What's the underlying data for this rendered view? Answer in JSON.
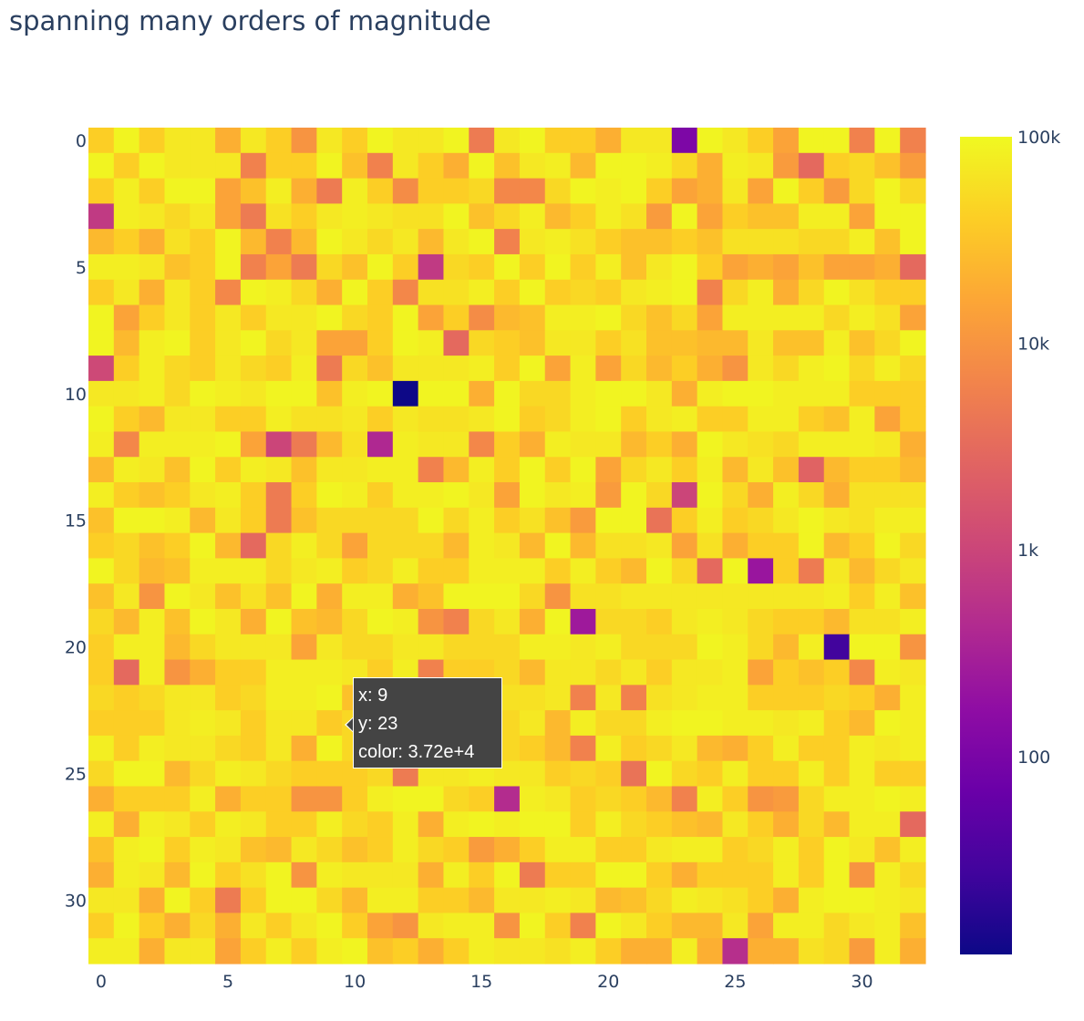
{
  "chart_data": {
    "type": "heatmap",
    "title": "spanning many orders of magnitude",
    "x_ticks": [
      0,
      5,
      10,
      15,
      20,
      25,
      30
    ],
    "y_ticks": [
      0,
      5,
      10,
      15,
      20,
      25,
      30
    ],
    "y_axis_reversed": true,
    "color_scale": "log",
    "colorbar": {
      "tick_values": [
        100000,
        10000,
        1000,
        100
      ],
      "tick_labels": [
        "100k",
        "10k",
        "1k",
        "100"
      ],
      "range": [
        11,
        100000
      ],
      "colors": [
        "#0d0887",
        "#41049d",
        "#6a00a8",
        "#8f0da4",
        "#b12a90",
        "#cc4778",
        "#e16462",
        "#f2844b",
        "#fca636",
        "#fcce25",
        "#f0f921"
      ]
    },
    "z": [
      [
        40000.0,
        90000.0,
        40000.0,
        70000.0,
        70000.0,
        20000.0,
        70000.0,
        40000.0,
        10000.0,
        70000.0,
        40000.0,
        90000.0,
        70000.0,
        70000.0,
        90000.0,
        5000.0,
        70000.0,
        90000.0,
        40000.0,
        40000.0,
        20000.0,
        70000.0,
        70000.0,
        110,
        90000.0,
        70000.0,
        40000.0,
        15000.0,
        90000.0,
        90000.0,
        6000.0,
        90000.0,
        6000.0
      ],
      [
        90000.0,
        40000.0,
        90000.0,
        70000.0,
        70000.0,
        70000.0,
        6000.0,
        40000.0,
        40000.0,
        90000.0,
        30000.0,
        6000.0,
        70000.0,
        40000.0,
        20000.0,
        90000.0,
        30000.0,
        70000.0,
        80000.0,
        25000.0,
        90000.0,
        90000.0,
        80000.0,
        50000.0,
        20000.0,
        80000.0,
        70000.0,
        12000.0,
        3000.0,
        40000.0,
        50000.0,
        30000.0,
        12000.0
      ],
      [
        40000.0,
        80000.0,
        40000.0,
        90000.0,
        90000.0,
        15000.0,
        30000.0,
        80000.0,
        20000.0,
        5000.0,
        80000.0,
        40000.0,
        8000.0,
        40000.0,
        40000.0,
        50000.0,
        7000.0,
        7000.0,
        50000.0,
        90000.0,
        80000.0,
        90000.0,
        40000.0,
        15000.0,
        20000.0,
        70000.0,
        15000.0,
        90000.0,
        40000.0,
        12000.0,
        50000.0,
        90000.0,
        50000.0
      ],
      [
        700,
        80000.0,
        70000.0,
        50000.0,
        70000.0,
        15000.0,
        5000.0,
        60000.0,
        40000.0,
        70000.0,
        80000.0,
        70000.0,
        60000.0,
        60000.0,
        90000.0,
        30000.0,
        50000.0,
        80000.0,
        25000.0,
        40000.0,
        80000.0,
        60000.0,
        12000.0,
        90000.0,
        15000.0,
        40000.0,
        30000.0,
        30000.0,
        80000.0,
        80000.0,
        15000.0,
        90000.0,
        90000.0
      ],
      [
        25000.0,
        40000.0,
        20000.0,
        60000.0,
        40000.0,
        90000.0,
        25000.0,
        6000.0,
        25000.0,
        90000.0,
        70000.0,
        50000.0,
        70000.0,
        25000.0,
        70000.0,
        90000.0,
        6000.0,
        70000.0,
        80000.0,
        60000.0,
        40000.0,
        30000.0,
        30000.0,
        40000.0,
        30000.0,
        60000.0,
        60000.0,
        60000.0,
        50000.0,
        50000.0,
        80000.0,
        30000.0,
        90000.0
      ],
      [
        80000.0,
        80000.0,
        70000.0,
        30000.0,
        40000.0,
        90000.0,
        6000.0,
        15000.0,
        5000.0,
        50000.0,
        30000.0,
        90000.0,
        40000.0,
        700,
        50000.0,
        40000.0,
        90000.0,
        40000.0,
        90000.0,
        40000.0,
        80000.0,
        30000.0,
        70000.0,
        90000.0,
        40000.0,
        15000.0,
        20000.0,
        15000.0,
        30000.0,
        15000.0,
        15000.0,
        20000.0,
        3000.0
      ],
      [
        40000.0,
        70000.0,
        20000.0,
        70000.0,
        40000.0,
        7000.0,
        90000.0,
        80000.0,
        50000.0,
        20000.0,
        90000.0,
        40000.0,
        7000.0,
        60000.0,
        60000.0,
        80000.0,
        40000.0,
        90000.0,
        40000.0,
        50000.0,
        40000.0,
        70000.0,
        80000.0,
        90000.0,
        6000.0,
        50000.0,
        80000.0,
        20000.0,
        50000.0,
        90000.0,
        60000.0,
        40000.0,
        40000.0
      ],
      [
        90000.0,
        15000.0,
        40000.0,
        70000.0,
        40000.0,
        70000.0,
        40000.0,
        70000.0,
        70000.0,
        90000.0,
        50000.0,
        40000.0,
        90000.0,
        15000.0,
        40000.0,
        8000.0,
        25000.0,
        30000.0,
        80000.0,
        80000.0,
        90000.0,
        50000.0,
        30000.0,
        50000.0,
        15000.0,
        80000.0,
        80000.0,
        80000.0,
        80000.0,
        50000.0,
        80000.0,
        60000.0,
        15000.0
      ],
      [
        90000.0,
        25000.0,
        80000.0,
        90000.0,
        40000.0,
        70000.0,
        90000.0,
        50000.0,
        70000.0,
        15000.0,
        15000.0,
        40000.0,
        90000.0,
        80000.0,
        3000.0,
        50000.0,
        40000.0,
        30000.0,
        70000.0,
        70000.0,
        40000.0,
        60000.0,
        30000.0,
        30000.0,
        25000.0,
        25000.0,
        70000.0,
        30000.0,
        30000.0,
        80000.0,
        30000.0,
        50000.0,
        90000.0
      ],
      [
        1100,
        40000.0,
        80000.0,
        50000.0,
        40000.0,
        70000.0,
        50000.0,
        40000.0,
        80000.0,
        5000.0,
        50000.0,
        30000.0,
        70000.0,
        70000.0,
        70000.0,
        80000.0,
        40000.0,
        90000.0,
        15000.0,
        80000.0,
        15000.0,
        50000.0,
        25000.0,
        40000.0,
        20000.0,
        10000.0,
        70000.0,
        50000.0,
        80000.0,
        90000.0,
        50000.0,
        80000.0,
        50000.0
      ],
      [
        70000.0,
        70000.0,
        80000.0,
        50000.0,
        90000.0,
        80000.0,
        70000.0,
        90000.0,
        90000.0,
        30000.0,
        80000.0,
        90000.0,
        11,
        90000.0,
        90000.0,
        20000.0,
        90000.0,
        50000.0,
        50000.0,
        80000.0,
        90000.0,
        90000.0,
        70000.0,
        20000.0,
        80000.0,
        90000.0,
        90000.0,
        80000.0,
        80000.0,
        80000.0,
        40000.0,
        40000.0,
        40000.0
      ],
      [
        90000.0,
        40000.0,
        25000.0,
        70000.0,
        70000.0,
        40000.0,
        40000.0,
        80000.0,
        60000.0,
        60000.0,
        70000.0,
        40000.0,
        70000.0,
        60000.0,
        60000.0,
        70000.0,
        90000.0,
        40000.0,
        50000.0,
        80000.0,
        90000.0,
        40000.0,
        70000.0,
        80000.0,
        40000.0,
        40000.0,
        80000.0,
        80000.0,
        40000.0,
        30000.0,
        80000.0,
        15000.0,
        40000.0
      ],
      [
        80000.0,
        7000.0,
        80000.0,
        80000.0,
        80000.0,
        90000.0,
        15000.0,
        1000,
        5000.0,
        25000.0,
        60000.0,
        400,
        80000.0,
        70000.0,
        70000.0,
        7000.0,
        40000.0,
        20000.0,
        80000.0,
        70000.0,
        70000.0,
        25000.0,
        40000.0,
        20000.0,
        90000.0,
        70000.0,
        60000.0,
        50000.0,
        80000.0,
        80000.0,
        80000.0,
        70000.0,
        20000.0
      ],
      [
        25000.0,
        80000.0,
        70000.0,
        30000.0,
        90000.0,
        40000.0,
        80000.0,
        70000.0,
        30000.0,
        70000.0,
        70000.0,
        80000.0,
        80000.0,
        6000.0,
        25000.0,
        80000.0,
        40000.0,
        90000.0,
        40000.0,
        90000.0,
        15000.0,
        50000.0,
        70000.0,
        40000.0,
        80000.0,
        25000.0,
        70000.0,
        30000.0,
        2500.0,
        25000.0,
        40000.0,
        40000.0,
        25000.0
      ],
      [
        80000.0,
        40000.0,
        30000.0,
        40000.0,
        70000.0,
        80000.0,
        40000.0,
        5000.0,
        40000.0,
        90000.0,
        80000.0,
        40000.0,
        80000.0,
        80000.0,
        90000.0,
        70000.0,
        15000.0,
        90000.0,
        70000.0,
        80000.0,
        12000.0,
        90000.0,
        50000.0,
        1000,
        90000.0,
        50000.0,
        20000.0,
        80000.0,
        50000.0,
        20000.0,
        60000.0,
        60000.0,
        60000.0
      ],
      [
        30000.0,
        90000.0,
        90000.0,
        80000.0,
        25000.0,
        70000.0,
        40000.0,
        5000.0,
        30000.0,
        50000.0,
        50000.0,
        50000.0,
        50000.0,
        90000.0,
        50000.0,
        80000.0,
        40000.0,
        60000.0,
        30000.0,
        12000.0,
        90000.0,
        90000.0,
        4000.0,
        40000.0,
        80000.0,
        40000.0,
        50000.0,
        70000.0,
        90000.0,
        70000.0,
        60000.0,
        80000.0,
        80000.0
      ],
      [
        40000.0,
        50000.0,
        30000.0,
        40000.0,
        90000.0,
        25000.0,
        3000.0,
        50000.0,
        80000.0,
        50000.0,
        15000.0,
        50000.0,
        50000.0,
        50000.0,
        25000.0,
        80000.0,
        70000.0,
        25000.0,
        90000.0,
        25000.0,
        60000.0,
        60000.0,
        70000.0,
        15000.0,
        60000.0,
        20000.0,
        40000.0,
        40000.0,
        90000.0,
        25000.0,
        40000.0,
        90000.0,
        50000.0
      ],
      [
        90000.0,
        50000.0,
        25000.0,
        30000.0,
        80000.0,
        80000.0,
        80000.0,
        50000.0,
        70000.0,
        80000.0,
        40000.0,
        50000.0,
        80000.0,
        40000.0,
        40000.0,
        80000.0,
        80000.0,
        80000.0,
        40000.0,
        80000.0,
        40000.0,
        25000.0,
        90000.0,
        50000.0,
        3000.0,
        90000.0,
        220,
        40000.0,
        5000.0,
        70000.0,
        25000.0,
        50000.0,
        70000.0
      ],
      [
        30000.0,
        70000.0,
        10000.0,
        90000.0,
        70000.0,
        30000.0,
        60000.0,
        30000.0,
        90000.0,
        20000.0,
        80000.0,
        80000.0,
        20000.0,
        30000.0,
        90000.0,
        90000.0,
        90000.0,
        50000.0,
        10000.0,
        60000.0,
        60000.0,
        70000.0,
        70000.0,
        70000.0,
        70000.0,
        70000.0,
        70000.0,
        70000.0,
        70000.0,
        80000.0,
        40000.0,
        80000.0,
        30000.0
      ],
      [
        50000.0,
        25000.0,
        80000.0,
        30000.0,
        90000.0,
        70000.0,
        20000.0,
        90000.0,
        30000.0,
        25000.0,
        50000.0,
        90000.0,
        80000.0,
        10000.0,
        6000.0,
        50000.0,
        70000.0,
        20000.0,
        90000.0,
        250,
        50000.0,
        50000.0,
        40000.0,
        70000.0,
        80000.0,
        70000.0,
        50000.0,
        40000.0,
        40000.0,
        25000.0,
        60000.0,
        60000.0,
        80000.0
      ],
      [
        40000.0,
        80000.0,
        80000.0,
        25000.0,
        50000.0,
        70000.0,
        70000.0,
        70000.0,
        15000.0,
        70000.0,
        50000.0,
        50000.0,
        70000.0,
        70000.0,
        50000.0,
        50000.0,
        50000.0,
        80000.0,
        80000.0,
        70000.0,
        80000.0,
        50000.0,
        50000.0,
        50000.0,
        90000.0,
        80000.0,
        50000.0,
        25000.0,
        80000.0,
        28,
        90000.0,
        90000.0,
        10000.0
      ],
      [
        40000.0,
        3000.0,
        80000.0,
        10000.0,
        20000.0,
        40000.0,
        40000.0,
        80000.0,
        80000.0,
        80000.0,
        70000.0,
        40000.0,
        80000.0,
        6000.0,
        40000.0,
        40000.0,
        50000.0,
        25000.0,
        70000.0,
        70000.0,
        50000.0,
        70000.0,
        40000.0,
        70000.0,
        70000.0,
        80000.0,
        15000.0,
        40000.0,
        30000.0,
        40000.0,
        7000.0,
        80000.0,
        70000.0
      ],
      [
        50000.0,
        40000.0,
        50000.0,
        70000.0,
        70000.0,
        40000.0,
        50000.0,
        80000.0,
        80000.0,
        90000.0,
        30000.0,
        60000.0,
        60000.0,
        60000.0,
        60000.0,
        60000.0,
        60000.0,
        60000.0,
        70000.0,
        6000.0,
        70000.0,
        6000.0,
        60000.0,
        70000.0,
        80000.0,
        80000.0,
        40000.0,
        40000.0,
        40000.0,
        50000.0,
        40000.0,
        20000.0,
        80000.0
      ],
      [
        40000.0,
        40000.0,
        40000.0,
        70000.0,
        80000.0,
        70000.0,
        40000.0,
        70000.0,
        70000.0,
        37200.0,
        50000.0,
        60000.0,
        60000.0,
        60000.0,
        60000.0,
        60000.0,
        50000.0,
        70000.0,
        25000.0,
        80000.0,
        50000.0,
        50000.0,
        80000.0,
        90000.0,
        90000.0,
        80000.0,
        80000.0,
        70000.0,
        80000.0,
        40000.0,
        25000.0,
        90000.0,
        80000.0
      ],
      [
        80000.0,
        40000.0,
        80000.0,
        70000.0,
        70000.0,
        50000.0,
        40000.0,
        70000.0,
        20000.0,
        90000.0,
        50000.0,
        60000.0,
        60000.0,
        60000.0,
        60000.0,
        60000.0,
        50000.0,
        40000.0,
        25000.0,
        6000.0,
        80000.0,
        40000.0,
        50000.0,
        70000.0,
        25000.0,
        20000.0,
        40000.0,
        80000.0,
        40000.0,
        40000.0,
        80000.0,
        70000.0,
        80000.0
      ],
      [
        50000.0,
        90000.0,
        90000.0,
        25000.0,
        50000.0,
        80000.0,
        70000.0,
        50000.0,
        40000.0,
        40000.0,
        40000.0,
        50000.0,
        5000.0,
        70000.0,
        70000.0,
        80000.0,
        70000.0,
        70000.0,
        40000.0,
        50000.0,
        40000.0,
        4000.0,
        90000.0,
        50000.0,
        40000.0,
        80000.0,
        40000.0,
        40000.0,
        80000.0,
        40000.0,
        80000.0,
        40000.0,
        40000.0
      ],
      [
        20000.0,
        40000.0,
        40000.0,
        40000.0,
        80000.0,
        20000.0,
        40000.0,
        40000.0,
        10000.0,
        10000.0,
        40000.0,
        80000.0,
        90000.0,
        90000.0,
        50000.0,
        40000.0,
        450,
        80000.0,
        70000.0,
        40000.0,
        50000.0,
        40000.0,
        25000.0,
        6000.0,
        80000.0,
        40000.0,
        10000.0,
        12000.0,
        50000.0,
        80000.0,
        80000.0,
        90000.0,
        80000.0
      ],
      [
        80000.0,
        20000.0,
        80000.0,
        70000.0,
        40000.0,
        80000.0,
        70000.0,
        40000.0,
        40000.0,
        80000.0,
        50000.0,
        40000.0,
        80000.0,
        20000.0,
        80000.0,
        90000.0,
        80000.0,
        90000.0,
        90000.0,
        40000.0,
        80000.0,
        50000.0,
        40000.0,
        30000.0,
        25000.0,
        70000.0,
        40000.0,
        20000.0,
        50000.0,
        25000.0,
        80000.0,
        80000.0,
        3000.0
      ],
      [
        30000.0,
        80000.0,
        90000.0,
        40000.0,
        80000.0,
        70000.0,
        30000.0,
        25000.0,
        70000.0,
        50000.0,
        30000.0,
        40000.0,
        80000.0,
        50000.0,
        40000.0,
        12000.0,
        20000.0,
        40000.0,
        80000.0,
        80000.0,
        40000.0,
        40000.0,
        70000.0,
        80000.0,
        80000.0,
        40000.0,
        50000.0,
        80000.0,
        40000.0,
        90000.0,
        70000.0,
        30000.0,
        80000.0
      ],
      [
        20000.0,
        80000.0,
        70000.0,
        25000.0,
        90000.0,
        40000.0,
        60000.0,
        90000.0,
        10000.0,
        80000.0,
        70000.0,
        70000.0,
        70000.0,
        20000.0,
        80000.0,
        40000.0,
        90000.0,
        5000.0,
        40000.0,
        40000.0,
        90000.0,
        90000.0,
        40000.0,
        20000.0,
        40000.0,
        40000.0,
        40000.0,
        80000.0,
        40000.0,
        90000.0,
        10000.0,
        80000.0,
        50000.0
      ],
      [
        70000.0,
        70000.0,
        20000.0,
        90000.0,
        40000.0,
        5000.0,
        40000.0,
        90000.0,
        90000.0,
        50000.0,
        25000.0,
        80000.0,
        80000.0,
        40000.0,
        40000.0,
        25000.0,
        70000.0,
        70000.0,
        80000.0,
        70000.0,
        25000.0,
        30000.0,
        50000.0,
        80000.0,
        70000.0,
        60000.0,
        40000.0,
        20000.0,
        80000.0,
        90000.0,
        90000.0,
        80000.0,
        70000.0
      ],
      [
        40000.0,
        90000.0,
        40000.0,
        20000.0,
        50000.0,
        20000.0,
        70000.0,
        40000.0,
        70000.0,
        90000.0,
        40000.0,
        15000.0,
        10000.0,
        70000.0,
        80000.0,
        80000.0,
        10000.0,
        90000.0,
        40000.0,
        6000.0,
        90000.0,
        70000.0,
        40000.0,
        25000.0,
        25000.0,
        70000.0,
        15000.0,
        80000.0,
        80000.0,
        50000.0,
        70000.0,
        80000.0,
        30000.0
      ],
      [
        80000.0,
        80000.0,
        20000.0,
        70000.0,
        70000.0,
        15000.0,
        40000.0,
        80000.0,
        40000.0,
        80000.0,
        90000.0,
        30000.0,
        40000.0,
        20000.0,
        40000.0,
        80000.0,
        70000.0,
        70000.0,
        60000.0,
        80000.0,
        40000.0,
        20000.0,
        20000.0,
        80000.0,
        20000.0,
        500,
        20000.0,
        20000.0,
        60000.0,
        50000.0,
        12000.0,
        80000.0,
        20000.0
      ]
    ],
    "hover": {
      "x_label": "x: 9",
      "y_label": "y: 23",
      "color_label": "color: 3.72e+4"
    }
  }
}
